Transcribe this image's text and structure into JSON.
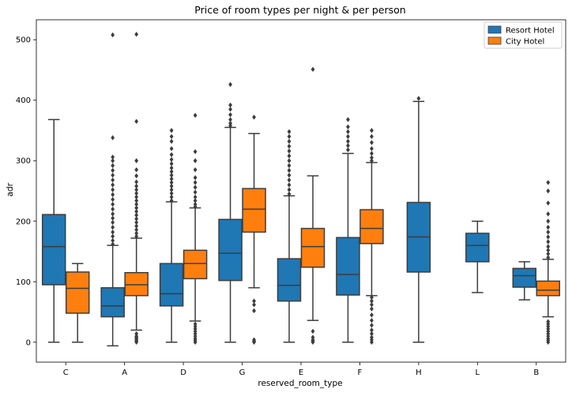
{
  "chart_data": {
    "type": "box",
    "title": "Price of room types per night & per person",
    "xlabel": "reserved_room_type",
    "ylabel": "adr",
    "categories": [
      "C",
      "A",
      "D",
      "G",
      "E",
      "F",
      "H",
      "L",
      "B"
    ],
    "ylim": [
      -33,
      533
    ],
    "yticks": [
      0,
      100,
      200,
      300,
      400,
      500
    ],
    "legend": {
      "position": "top-right"
    },
    "series": [
      {
        "name": "Resort Hotel",
        "color": "#1f77b4",
        "boxes": [
          {
            "category": "C",
            "whisker_low": 0,
            "q1": 95,
            "median": 158,
            "q3": 211,
            "whisker_high": 368,
            "outliers": []
          },
          {
            "category": "A",
            "whisker_low": -6,
            "q1": 42,
            "median": 60,
            "q3": 90,
            "whisker_high": 160,
            "outliers": [
              162,
              168,
              175,
              182,
              190,
              198,
              205,
              212,
              220,
              228,
              236,
              244,
              252,
              260,
              268,
              276,
              284,
              292,
              300,
              306,
              338,
              508
            ]
          },
          {
            "category": "D",
            "whisker_low": 0,
            "q1": 60,
            "median": 80,
            "q3": 130,
            "whisker_high": 232,
            "outliers": [
              234,
              240,
              246,
              252,
              258,
              264,
              270,
              276,
              282,
              288,
              295,
              302,
              310,
              320,
              332,
              340,
              350
            ]
          },
          {
            "category": "G",
            "whisker_low": 0,
            "q1": 102,
            "median": 147,
            "q3": 203,
            "whisker_high": 355,
            "outliers": [
              358,
              362,
              368,
              376,
              385,
              392,
              426
            ]
          },
          {
            "category": "E",
            "whisker_low": 0,
            "q1": 68,
            "median": 94,
            "q3": 138,
            "whisker_high": 242,
            "outliers": [
              245,
              252,
              260,
              268,
              276,
              284,
              292,
              300,
              308,
              316,
              324,
              332,
              340,
              348
            ]
          },
          {
            "category": "F",
            "whisker_low": 0,
            "q1": 78,
            "median": 112,
            "q3": 173,
            "whisker_high": 312,
            "outliers": [
              318,
              325,
              332,
              340,
              348,
              356,
              368
            ]
          },
          {
            "category": "H",
            "whisker_low": 0,
            "q1": 116,
            "median": 174,
            "q3": 231,
            "whisker_high": 398,
            "outliers": [
              403
            ]
          },
          {
            "category": "L",
            "whisker_low": 82,
            "q1": 133,
            "median": 160,
            "q3": 180,
            "whisker_high": 200,
            "outliers": []
          },
          {
            "category": "B",
            "whisker_low": 70,
            "q1": 91,
            "median": 110,
            "q3": 122,
            "whisker_high": 133,
            "outliers": []
          }
        ]
      },
      {
        "name": "City Hotel",
        "color": "#ff7f0e",
        "boxes": [
          {
            "category": "C",
            "whisker_low": 0,
            "q1": 48,
            "median": 89,
            "q3": 116,
            "whisker_high": 130,
            "outliers": []
          },
          {
            "category": "A",
            "whisker_low": 20,
            "q1": 77,
            "median": 95,
            "q3": 115,
            "whisker_high": 172,
            "outliers": [
              0,
              2,
              4,
              6,
              8,
              10,
              14,
              175,
              180,
              186,
              192,
              198,
              204,
              210,
              216,
              222,
              228,
              234,
              240,
              246,
              252,
              258,
              265,
              275,
              285,
              300,
              365,
              509
            ]
          },
          {
            "category": "D",
            "whisker_low": 35,
            "q1": 105,
            "median": 130,
            "q3": 152,
            "whisker_high": 222,
            "outliers": [
              0,
              3,
              6,
              10,
              14,
              18,
              22,
              26,
              30,
              224,
              228,
              234,
              240,
              248,
              256,
              264,
              272,
              285,
              300,
              315,
              375
            ]
          },
          {
            "category": "G",
            "whisker_low": 90,
            "q1": 182,
            "median": 220,
            "q3": 254,
            "whisker_high": 345,
            "outliers": [
              0,
              2,
              4,
              52,
              62,
              68,
              372
            ]
          },
          {
            "category": "E",
            "whisker_low": 36,
            "q1": 124,
            "median": 158,
            "q3": 188,
            "whisker_high": 275,
            "outliers": [
              0,
              2,
              4,
              8,
              18,
              451
            ]
          },
          {
            "category": "F",
            "whisker_low": 77,
            "q1": 163,
            "median": 188,
            "q3": 219,
            "whisker_high": 297,
            "outliers": [
              0,
              4,
              8,
              14,
              20,
              28,
              36,
              45,
              55,
              62,
              68,
              74,
              300,
              305,
              312,
              320,
              330,
              340,
              350
            ]
          },
          {
            "category": "B",
            "whisker_low": 42,
            "q1": 77,
            "median": 86,
            "q3": 101,
            "whisker_high": 137,
            "outliers": [
              0,
              3,
              6,
              10,
              14,
              18,
              22,
              26,
              30,
              34,
              140,
              146,
              152,
              158,
              166,
              174,
              182,
              190,
              200,
              212,
              230,
              250,
              264
            ]
          }
        ]
      }
    ]
  }
}
